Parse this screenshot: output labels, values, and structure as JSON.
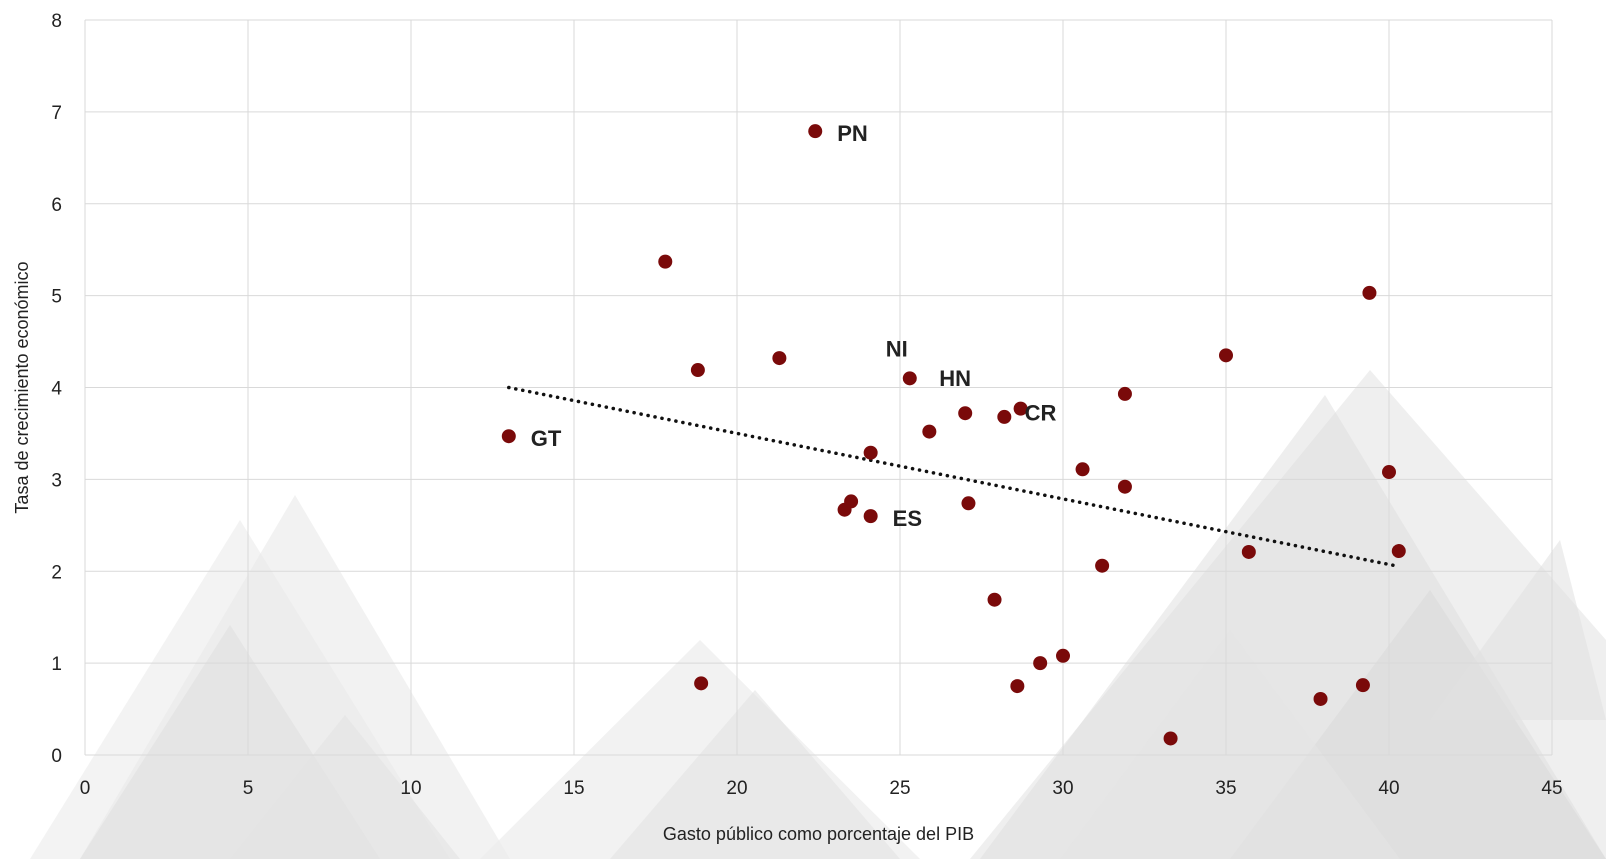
{
  "chart_data": {
    "type": "scatter",
    "title": "",
    "xlabel": "Gasto público como porcentaje del PIB",
    "ylabel": "Tasa de crecimiento económico",
    "xlim": [
      0,
      45
    ],
    "ylim": [
      0,
      8
    ],
    "x_ticks": [
      0,
      5,
      10,
      15,
      20,
      25,
      30,
      35,
      40,
      45
    ],
    "y_ticks": [
      0,
      1,
      2,
      3,
      4,
      5,
      6,
      7,
      8
    ],
    "grid": true,
    "marker_color": "#7a0a0a",
    "trendline": {
      "style": "dotted",
      "color": "#111111",
      "x": [
        13,
        40.2
      ],
      "y": [
        4.0,
        2.06
      ]
    },
    "series": [
      {
        "points": [
          {
            "x": 13.0,
            "y": 3.47,
            "label": "GT"
          },
          {
            "x": 17.8,
            "y": 5.37
          },
          {
            "x": 18.8,
            "y": 4.19
          },
          {
            "x": 18.9,
            "y": 0.78
          },
          {
            "x": 21.3,
            "y": 4.32
          },
          {
            "x": 22.4,
            "y": 6.79,
            "label": "PN"
          },
          {
            "x": 23.3,
            "y": 2.67
          },
          {
            "x": 23.5,
            "y": 2.76
          },
          {
            "x": 24.1,
            "y": 2.6,
            "label": "ES"
          },
          {
            "x": 24.1,
            "y": 3.29
          },
          {
            "x": 25.3,
            "y": 4.1,
            "label": "NI"
          },
          {
            "x": 25.9,
            "y": 3.52
          },
          {
            "x": 27.0,
            "y": 3.72,
            "label": "HN"
          },
          {
            "x": 27.1,
            "y": 2.74
          },
          {
            "x": 27.9,
            "y": 1.69
          },
          {
            "x": 28.2,
            "y": 3.68
          },
          {
            "x": 28.6,
            "y": 0.75
          },
          {
            "x": 28.7,
            "y": 3.77,
            "label": "CR"
          },
          {
            "x": 29.3,
            "y": 1.0
          },
          {
            "x": 30.0,
            "y": 1.08
          },
          {
            "x": 30.6,
            "y": 3.11
          },
          {
            "x": 31.2,
            "y": 2.06
          },
          {
            "x": 31.9,
            "y": 3.93
          },
          {
            "x": 31.9,
            "y": 2.92
          },
          {
            "x": 33.3,
            "y": 0.18
          },
          {
            "x": 35.0,
            "y": 4.35
          },
          {
            "x": 35.7,
            "y": 2.21
          },
          {
            "x": 37.9,
            "y": 0.61
          },
          {
            "x": 39.2,
            "y": 0.76
          },
          {
            "x": 39.4,
            "y": 5.03
          },
          {
            "x": 40.0,
            "y": 3.08
          },
          {
            "x": 40.3,
            "y": 2.22
          }
        ]
      }
    ]
  }
}
